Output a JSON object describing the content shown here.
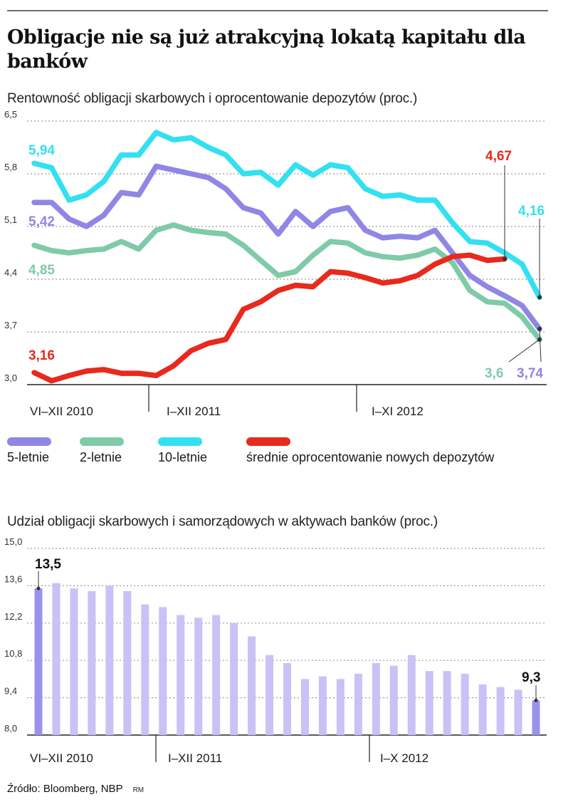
{
  "headline": "Obligacje nie są już atrakcyjną lokatą kapitału dla banków",
  "chart_data": [
    {
      "type": "line",
      "title": "Rentowność obligacji skarbowych i oprocentowanie depozytów (proc.)",
      "ylim": [
        3.0,
        6.5
      ],
      "yticks": [
        "3,0",
        "3,7",
        "4,4",
        "5,1",
        "5,8",
        "6,5"
      ],
      "grid": true,
      "x_period_labels": [
        "VI–XII 2010",
        "I–XII 2011",
        "I–XI 2012"
      ],
      "series": [
        {
          "name": "5-letnie",
          "color": "#8f86e6",
          "start_label": "5,42",
          "end_label": "3,74",
          "values": [
            5.42,
            5.42,
            5.2,
            5.1,
            5.25,
            5.55,
            5.52,
            5.9,
            5.85,
            5.8,
            5.75,
            5.6,
            5.35,
            5.28,
            5.0,
            5.3,
            5.1,
            5.3,
            5.35,
            5.05,
            4.95,
            4.97,
            4.95,
            5.05,
            4.75,
            4.45,
            4.3,
            4.18,
            4.05,
            3.74
          ]
        },
        {
          "name": "2-letnie",
          "color": "#7fcaa8",
          "start_label": "4,85",
          "end_label": "3,6",
          "values": [
            4.85,
            4.78,
            4.75,
            4.78,
            4.8,
            4.9,
            4.8,
            5.05,
            5.12,
            5.05,
            5.02,
            5.0,
            4.85,
            4.65,
            4.45,
            4.5,
            4.72,
            4.9,
            4.88,
            4.75,
            4.7,
            4.68,
            4.72,
            4.8,
            4.62,
            4.25,
            4.1,
            4.08,
            3.9,
            3.6
          ]
        },
        {
          "name": "10-letnie",
          "color": "#33e0f2",
          "start_label": "5,94",
          "end_label": "4,16",
          "values": [
            5.94,
            5.88,
            5.45,
            5.52,
            5.7,
            6.05,
            6.05,
            6.35,
            6.25,
            6.28,
            6.15,
            6.05,
            5.8,
            5.82,
            5.65,
            5.92,
            5.78,
            5.92,
            5.88,
            5.6,
            5.5,
            5.52,
            5.45,
            5.45,
            5.15,
            4.9,
            4.88,
            4.75,
            4.6,
            4.16
          ]
        },
        {
          "name": "średnie oprocentowanie nowych depozytów",
          "color": "#e8291d",
          "start_label": "3,16",
          "end_label": "4,67",
          "values": [
            3.16,
            3.05,
            3.12,
            3.18,
            3.2,
            3.15,
            3.15,
            3.12,
            3.25,
            3.45,
            3.55,
            3.6,
            4.0,
            4.1,
            4.25,
            4.32,
            4.3,
            4.5,
            4.48,
            4.42,
            4.35,
            4.38,
            4.45,
            4.6,
            4.7,
            4.72,
            4.65,
            4.67
          ]
        }
      ]
    },
    {
      "type": "bar",
      "title": "Udział obligacji skarbowych i samorządowych w aktywach banków (proc.)",
      "ylim": [
        8.0,
        15.0
      ],
      "yticks": [
        "8,0",
        "9,4",
        "10,8",
        "12,2",
        "13,6",
        "15,0"
      ],
      "grid": true,
      "color": "#c8c2f7",
      "highlight_color": "#9b93ea",
      "x_period_labels": [
        "VI–XII 2010",
        "I–XII 2011",
        "I–X 2012"
      ],
      "first_label": "13,5",
      "last_label": "9,3",
      "values": [
        13.5,
        13.7,
        13.5,
        13.4,
        13.6,
        13.4,
        12.9,
        12.8,
        12.5,
        12.4,
        12.5,
        12.2,
        11.7,
        11.0,
        10.7,
        10.1,
        10.2,
        10.1,
        10.3,
        10.7,
        10.6,
        11.0,
        10.4,
        10.4,
        10.3,
        9.9,
        9.8,
        9.7,
        9.3
      ]
    }
  ],
  "legend": {
    "items": [
      {
        "label": "5-letnie",
        "color": "#8f86e6"
      },
      {
        "label": "2-letnie",
        "color": "#7fcaa8"
      },
      {
        "label": "10-letnie",
        "color": "#33e0f2"
      },
      {
        "label": "średnie oprocentowanie nowych depozytów",
        "color": "#e8291d"
      }
    ]
  },
  "source": {
    "text": "Źródło: Bloomberg, NBP",
    "credit": "RM"
  }
}
